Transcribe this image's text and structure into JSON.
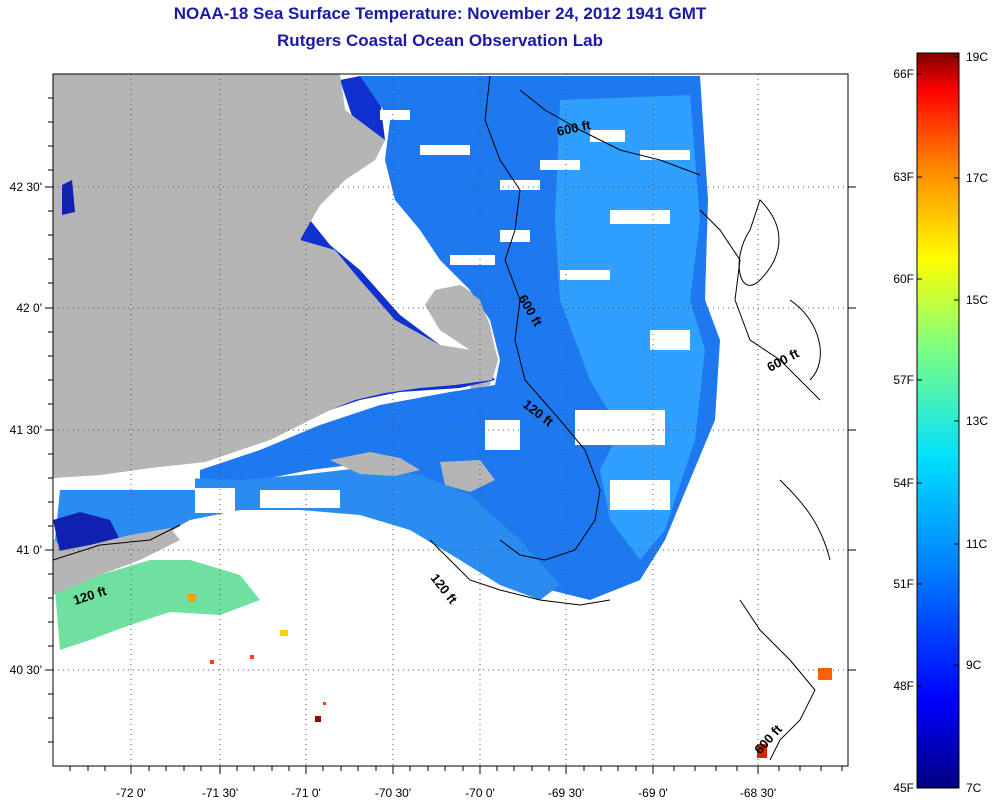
{
  "title": {
    "line1": "NOAA-18 Sea Surface Temperature:  November 24, 2012 1941 GMT",
    "line2": "Rutgers Coastal Ocean Observation Lab"
  },
  "axes": {
    "y_labels": [
      "42 30'",
      "42 0'",
      "41 30'",
      "41 0'",
      "40 30'"
    ],
    "x_labels": [
      "-72 0'",
      "-71 30'",
      "-71 0'",
      "-70 30'",
      "-70 0'",
      "-69 30'",
      "-69 0'",
      "-68 30'"
    ]
  },
  "contours": {
    "a": "600 ft",
    "b": "600 ft",
    "c": "120 ft",
    "d": "600 ft",
    "e": "120 ft",
    "f": "120 ft",
    "g": "600 ft"
  },
  "colorbar": {
    "fahrenheit": [
      "66F",
      "63F",
      "60F",
      "57F",
      "54F",
      "51F",
      "48F",
      "45F"
    ],
    "celsius": [
      "19C",
      "17C",
      "15C",
      "13C",
      "11C",
      "9C",
      "7C"
    ]
  },
  "colors": {
    "title": "#1a1aa6",
    "land": "#b5b5b5",
    "cold": "#0000a0",
    "mid": "#1e90ff",
    "warm": "#ff2000"
  }
}
